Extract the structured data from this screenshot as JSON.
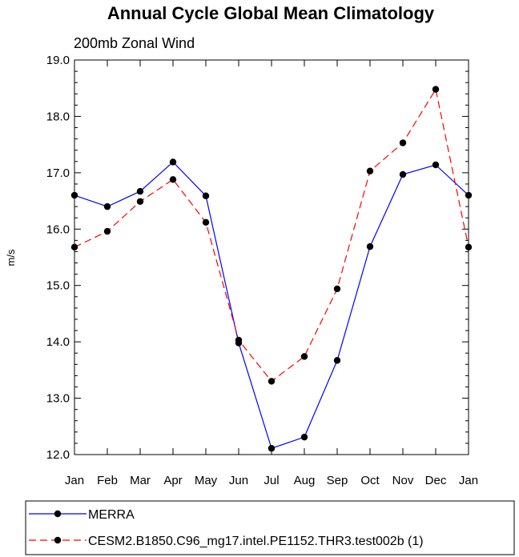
{
  "chart_data": {
    "type": "line",
    "title": "Annual Cycle Global Mean Climatology",
    "subtitle": "200mb Zonal Wind",
    "xlabel": "",
    "ylabel": "m/s",
    "categories": [
      "Jan",
      "Feb",
      "Mar",
      "Apr",
      "May",
      "Jun",
      "Jul",
      "Aug",
      "Sep",
      "Oct",
      "Nov",
      "Dec",
      "Jan"
    ],
    "yticks": [
      "12.0",
      "13.0",
      "14.0",
      "15.0",
      "16.0",
      "17.0",
      "18.0",
      "19.0"
    ],
    "ylim": [
      12.0,
      19.0
    ],
    "grid": false,
    "legend_position": "bottom",
    "series": [
      {
        "name": "MERRA",
        "color": "#0000ff",
        "dash": "solid",
        "marker": "filled-circle",
        "values": [
          16.6,
          16.4,
          16.67,
          17.19,
          16.59,
          13.98,
          12.11,
          12.31,
          13.67,
          15.69,
          16.97,
          17.14,
          16.6
        ]
      },
      {
        "name": "CESM2.B1850.C96_mg17.intel.PE1152.THR3.test002b (1)",
        "color": "#ff0000",
        "dash": "dashed",
        "marker": "filled-circle",
        "values": [
          15.68,
          15.96,
          16.49,
          16.88,
          16.12,
          14.03,
          13.3,
          13.74,
          14.94,
          17.03,
          17.53,
          18.48,
          15.68
        ]
      }
    ]
  }
}
